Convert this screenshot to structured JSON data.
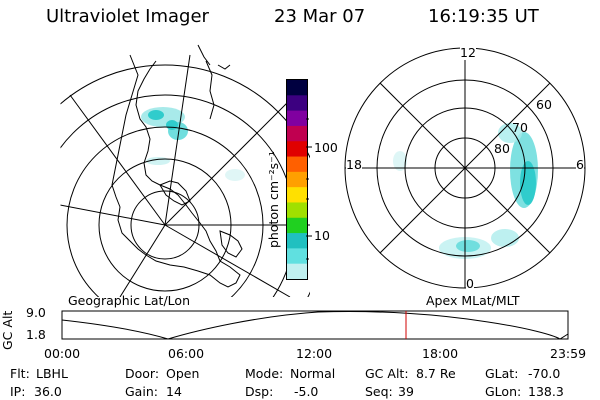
{
  "header": {
    "title": "Ultraviolet Imager",
    "date": "23 Mar 07",
    "time": "16:19:35 UT"
  },
  "colorbar": {
    "unit": "photon cm⁻²s⁻¹",
    "ticks": [
      "100",
      "10"
    ],
    "colors": [
      "#000040",
      "#3c0080",
      "#8000a0",
      "#c00050",
      "#e00000",
      "#ff6000",
      "#ffa000",
      "#ffe000",
      "#a0e000",
      "#20d020",
      "#20c0c0",
      "#60e0e0",
      "#c0f0f0"
    ]
  },
  "left_map": {
    "caption": "Geographic Lat/Lon"
  },
  "right_map": {
    "caption": "Apex MLat/MLT",
    "mlt_labels": {
      "top": "12",
      "left": "18",
      "right": "6",
      "bottom": "0"
    },
    "lat_labels": [
      "60",
      "70",
      "80"
    ]
  },
  "altitude_plot": {
    "ylabel": "GC Alt",
    "y_ticks": [
      "9.0",
      "1.8"
    ],
    "x_ticks": [
      "00:00",
      "06:00",
      "12:00",
      "18:00",
      "23:59"
    ],
    "current_time_marker": "16:19:35"
  },
  "info": {
    "flt_label": "Flt:",
    "flt_value": "LBHL",
    "ip_label": "IP:",
    "ip_value": "36.0",
    "door_label": "Door:",
    "door_value": "Open",
    "gain_label": "Gain:",
    "gain_value": "14",
    "mode_label": "Mode:",
    "mode_value": "Normal",
    "dsp_label": "Dsp:",
    "dsp_value": "-5.0",
    "gcalt_label": "GC Alt:",
    "gcalt_value": "8.7 Re",
    "seq_label": "Seq:",
    "seq_value": "39",
    "glat_label": "GLat:",
    "glat_value": "-70.0",
    "glon_label": "GLon:",
    "glon_value": "138.3"
  }
}
